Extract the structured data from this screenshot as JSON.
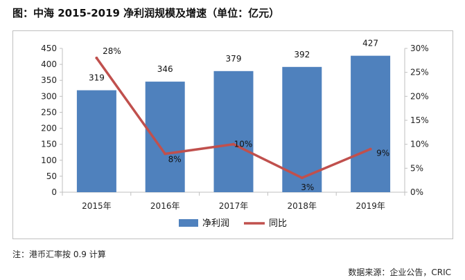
{
  "figure": {
    "title": "图：中海 2015-2019 净利润规模及增速（单位：亿元）",
    "note": "注：港币汇率按 0.9 计算",
    "source": "数据来源：企业公告，CRIC"
  },
  "chart_data": {
    "type": "bar",
    "categories": [
      "2015年",
      "2016年",
      "2017年",
      "2018年",
      "2019年"
    ],
    "series": [
      {
        "name": "净利润",
        "type": "bar",
        "axis": "left",
        "values": [
          319,
          346,
          379,
          392,
          427
        ],
        "labels": [
          "319",
          "346",
          "379",
          "392",
          "427"
        ],
        "color": "#4f81bd"
      },
      {
        "name": "同比",
        "type": "line",
        "axis": "right",
        "values": [
          0.28,
          0.08,
          0.1,
          0.03,
          0.09
        ],
        "labels": [
          "28%",
          "8%",
          "10%",
          "3%",
          "9%"
        ],
        "color": "#c0504d"
      }
    ],
    "ylim": [
      0,
      450
    ],
    "yticks": [
      "0",
      "50",
      "100",
      "150",
      "200",
      "250",
      "300",
      "350",
      "400",
      "450"
    ],
    "y2lim": [
      0,
      0.3
    ],
    "y2ticks": [
      "0%",
      "5%",
      "10%",
      "15%",
      "20%",
      "25%",
      "30%"
    ],
    "grid": false,
    "legend": "bottom"
  }
}
